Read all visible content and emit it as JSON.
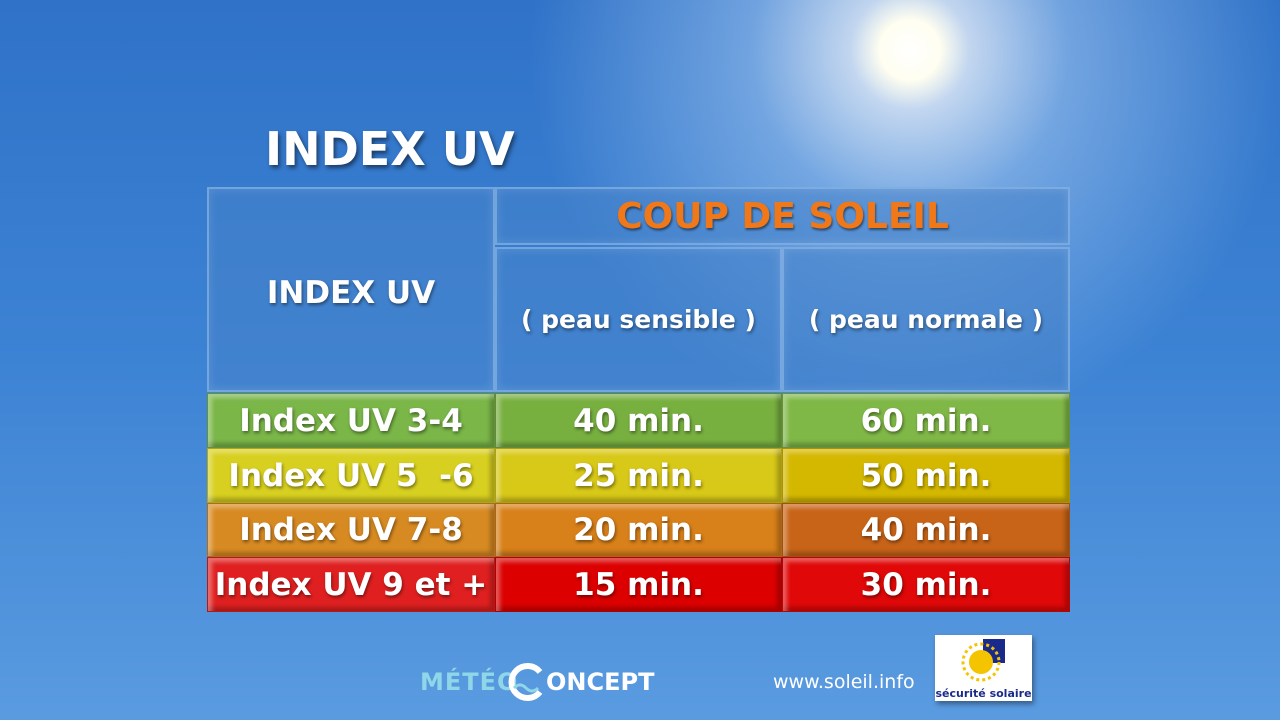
{
  "title": "INDEX UV",
  "table": {
    "header": {
      "index": "INDEX UV",
      "group": "COUP DE SOLEIL",
      "col1": "( peau sensible )",
      "col2": "( peau normale )"
    },
    "rows": [
      [
        "Index UV 3-4",
        "40 min.",
        "60 min."
      ],
      [
        "Index UV 5  -6",
        "25 min.",
        "50 min."
      ],
      [
        "Index UV 7-8",
        "20 min.",
        "40 min."
      ],
      [
        "Index UV 9 et +",
        "15 min.",
        "30 min."
      ]
    ]
  },
  "footer": {
    "logo_left": "MÉTÉO",
    "logo_right": "ONCEPT",
    "url": "www.soleil.info",
    "badge": "sécurité solaire"
  }
}
